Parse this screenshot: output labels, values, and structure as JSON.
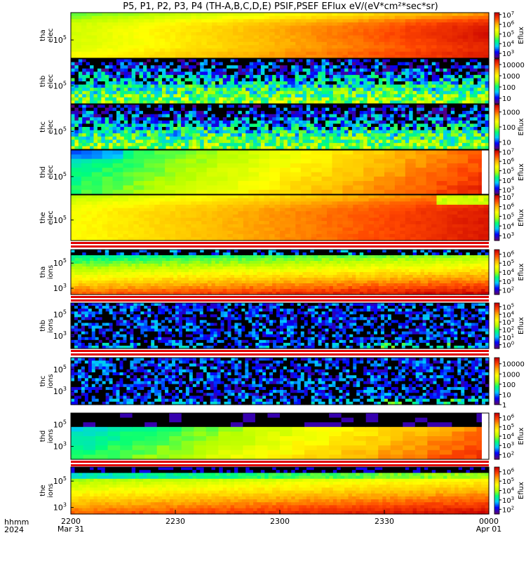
{
  "chart_data": {
    "type": "heatmap",
    "title": "P5, P1, P2, P3, P4 (TH-A,B,C,D,E) PSIF,PSEF EFlux eV/(eV*cm²*sec*sr)",
    "footer": {
      "left_line1": "hhmm",
      "left_line2": "2024"
    },
    "x_axis": {
      "range": [
        "2024-03-31T22:00",
        "2024-04-01T00:00"
      ],
      "ticks": [
        {
          "label": "2200",
          "sublabel": "Mar 31",
          "time": "2024-03-31T22:00"
        },
        {
          "label": "2230",
          "sublabel": "",
          "time": "2024-03-31T22:30"
        },
        {
          "label": "2300",
          "sublabel": "",
          "time": "2024-03-31T23:00"
        },
        {
          "label": "2330",
          "sublabel": "",
          "time": "2024-03-31T23:30"
        },
        {
          "label": "0000",
          "sublabel": "Apr 01",
          "time": "2024-04-01T00:00"
        }
      ]
    },
    "colorscale": [
      "#5a0078",
      "#0000ff",
      "#00c8ff",
      "#00ff7a",
      "#b4ff00",
      "#ffff00",
      "#ffb400",
      "#ff4600",
      "#c80000"
    ],
    "panels": [
      {
        "probe": "tha",
        "species": "elec",
        "ylabel": [
          "tha",
          "elec"
        ],
        "yticks": [
          {
            "label": "10",
            "exp": "5",
            "pos": 0.6
          }
        ],
        "cbar_label": "Eflux",
        "cbar_ticks": [
          {
            "b": "10",
            "e": "7"
          },
          {
            "b": "10",
            "e": "6"
          },
          {
            "b": "10",
            "e": "5"
          },
          {
            "b": "10",
            "e": "4"
          },
          {
            "b": "10",
            "e": "3"
          }
        ],
        "cbar_range_log": [
          2.5,
          7.2
        ],
        "pattern": "elecHot",
        "cols": 80,
        "rows": 14,
        "red_bar_below": false,
        "black_row_top": false
      },
      {
        "probe": "thb",
        "species": "elec",
        "ylabel": [
          "thb",
          "elec"
        ],
        "yticks": [
          {
            "label": "10",
            "exp": "5",
            "pos": 0.6
          }
        ],
        "cbar_label": "",
        "cbar_ticks": [
          {
            "b": "10000",
            "e": ""
          },
          {
            "b": "1000",
            "e": ""
          },
          {
            "b": "100",
            "e": ""
          },
          {
            "b": "10",
            "e": ""
          }
        ],
        "cbar_range_log": [
          0.5,
          4.5
        ],
        "pattern": "elecNoise",
        "cols": 110,
        "rows": 14,
        "red_bar_below": false,
        "black_row_top": false
      },
      {
        "probe": "thc",
        "species": "elec",
        "ylabel": [
          "thc",
          "elec"
        ],
        "yticks": [
          {
            "label": "10",
            "exp": "5",
            "pos": 0.6
          }
        ],
        "cbar_label": "Eflux",
        "cbar_ticks": [
          {
            "b": "1000",
            "e": ""
          },
          {
            "b": "100",
            "e": ""
          },
          {
            "b": "10",
            "e": ""
          }
        ],
        "cbar_range_log": [
          0.5,
          3.5
        ],
        "pattern": "elecNoise",
        "cols": 110,
        "rows": 14,
        "red_bar_below": false,
        "black_row_top": false
      },
      {
        "probe": "thd",
        "species": "elec",
        "ylabel": [
          "thd",
          "elec"
        ],
        "yticks": [
          {
            "label": "10",
            "exp": "5",
            "pos": 0.6
          }
        ],
        "cbar_label": "Eflux",
        "cbar_ticks": [
          {
            "b": "10",
            "e": "7"
          },
          {
            "b": "10",
            "e": "6"
          },
          {
            "b": "10",
            "e": "5"
          },
          {
            "b": "10",
            "e": "4"
          },
          {
            "b": "10",
            "e": "3"
          }
        ],
        "cbar_range_log": [
          2.5,
          7.2
        ],
        "pattern": "elecCoarse",
        "cols": 40,
        "rows": 10,
        "red_bar_below": false,
        "black_row_top": false
      },
      {
        "probe": "the",
        "species": "elec",
        "ylabel": [
          "the",
          "elec"
        ],
        "yticks": [
          {
            "label": "10",
            "exp": "5",
            "pos": 0.55
          }
        ],
        "cbar_label": "Eflux",
        "cbar_ticks": [
          {
            "b": "10",
            "e": "7"
          },
          {
            "b": "10",
            "e": "6"
          },
          {
            "b": "10",
            "e": "5"
          },
          {
            "b": "10",
            "e": "4"
          },
          {
            "b": "10",
            "e": "3"
          }
        ],
        "cbar_range_log": [
          2.5,
          7.2
        ],
        "pattern": "elecHotE",
        "cols": 80,
        "rows": 14,
        "red_bar_below": true,
        "black_row_top": false
      },
      {
        "probe": "tha",
        "species": "ions",
        "ylabel": [
          "tha",
          "ions"
        ],
        "yticks": [
          {
            "label": "10",
            "exp": "5",
            "pos": 0.3
          },
          {
            "label": "10",
            "exp": "3",
            "pos": 0.86
          }
        ],
        "cbar_label": "Eflux",
        "cbar_ticks": [
          {
            "b": "10",
            "e": "6"
          },
          {
            "b": "10",
            "e": "5"
          },
          {
            "b": "10",
            "e": "4"
          },
          {
            "b": "10",
            "e": "3"
          },
          {
            "b": "10",
            "e": "2"
          }
        ],
        "cbar_range_log": [
          1.5,
          6.5
        ],
        "pattern": "ionA",
        "cols": 110,
        "rows": 16,
        "red_bar_below": true,
        "black_row_top": true
      },
      {
        "probe": "thb",
        "species": "ions",
        "ylabel": [
          "thb",
          "ions"
        ],
        "yticks": [
          {
            "label": "10",
            "exp": "5",
            "pos": 0.25
          },
          {
            "label": "10",
            "exp": "3",
            "pos": 0.72
          }
        ],
        "cbar_label": "Eflux",
        "cbar_ticks": [
          {
            "b": "10",
            "e": "5"
          },
          {
            "b": "10",
            "e": "4"
          },
          {
            "b": "10",
            "e": "3"
          },
          {
            "b": "10",
            "e": "2"
          },
          {
            "b": "10",
            "e": "1"
          },
          {
            "b": "10",
            "e": "0"
          }
        ],
        "cbar_range_log": [
          -0.5,
          5.5
        ],
        "pattern": "ionNoise",
        "cols": 120,
        "rows": 16,
        "red_bar_below": true,
        "black_row_top": false
      },
      {
        "probe": "thc",
        "species": "ions",
        "ylabel": [
          "thc",
          "ions"
        ],
        "yticks": [
          {
            "label": "10",
            "exp": "5",
            "pos": 0.25
          },
          {
            "label": "10",
            "exp": "3",
            "pos": 0.72
          }
        ],
        "cbar_label": "",
        "cbar_ticks": [
          {
            "b": "10000",
            "e": ""
          },
          {
            "b": "1000",
            "e": ""
          },
          {
            "b": "100",
            "e": ""
          },
          {
            "b": "10",
            "e": ""
          },
          {
            "b": "1",
            "e": ""
          }
        ],
        "cbar_range_log": [
          0,
          4.6
        ],
        "pattern": "ionNoise",
        "cols": 120,
        "rows": 16,
        "red_bar_below": false,
        "black_row_top": false
      },
      {
        "probe": "thd",
        "species": "ions",
        "ylabel": [
          "thd",
          "ions"
        ],
        "yticks": [
          {
            "label": "10",
            "exp": "5",
            "pos": 0.25
          },
          {
            "label": "10",
            "exp": "3",
            "pos": 0.72
          }
        ],
        "cbar_label": "Eflux",
        "cbar_ticks": [
          {
            "b": "10",
            "e": "6"
          },
          {
            "b": "10",
            "e": "5"
          },
          {
            "b": "10",
            "e": "4"
          },
          {
            "b": "10",
            "e": "3"
          },
          {
            "b": "10",
            "e": "2"
          }
        ],
        "cbar_range_log": [
          1.5,
          6.5
        ],
        "pattern": "ionD",
        "cols": 34,
        "rows": 10,
        "red_bar_below": true,
        "black_row_top": false
      },
      {
        "probe": "the",
        "species": "ions",
        "ylabel": [
          "the",
          "ions"
        ],
        "yticks": [
          {
            "label": "10",
            "exp": "5",
            "pos": 0.3
          },
          {
            "label": "10",
            "exp": "3",
            "pos": 0.86
          }
        ],
        "cbar_label": "Eflux",
        "cbar_ticks": [
          {
            "b": "10",
            "e": "6"
          },
          {
            "b": "10",
            "e": "5"
          },
          {
            "b": "10",
            "e": "4"
          },
          {
            "b": "10",
            "e": "3"
          },
          {
            "b": "10",
            "e": "2"
          }
        ],
        "cbar_range_log": [
          1.5,
          6.5
        ],
        "pattern": "ionE",
        "cols": 110,
        "rows": 16,
        "red_bar_below": false,
        "black_row_top": true
      }
    ]
  }
}
